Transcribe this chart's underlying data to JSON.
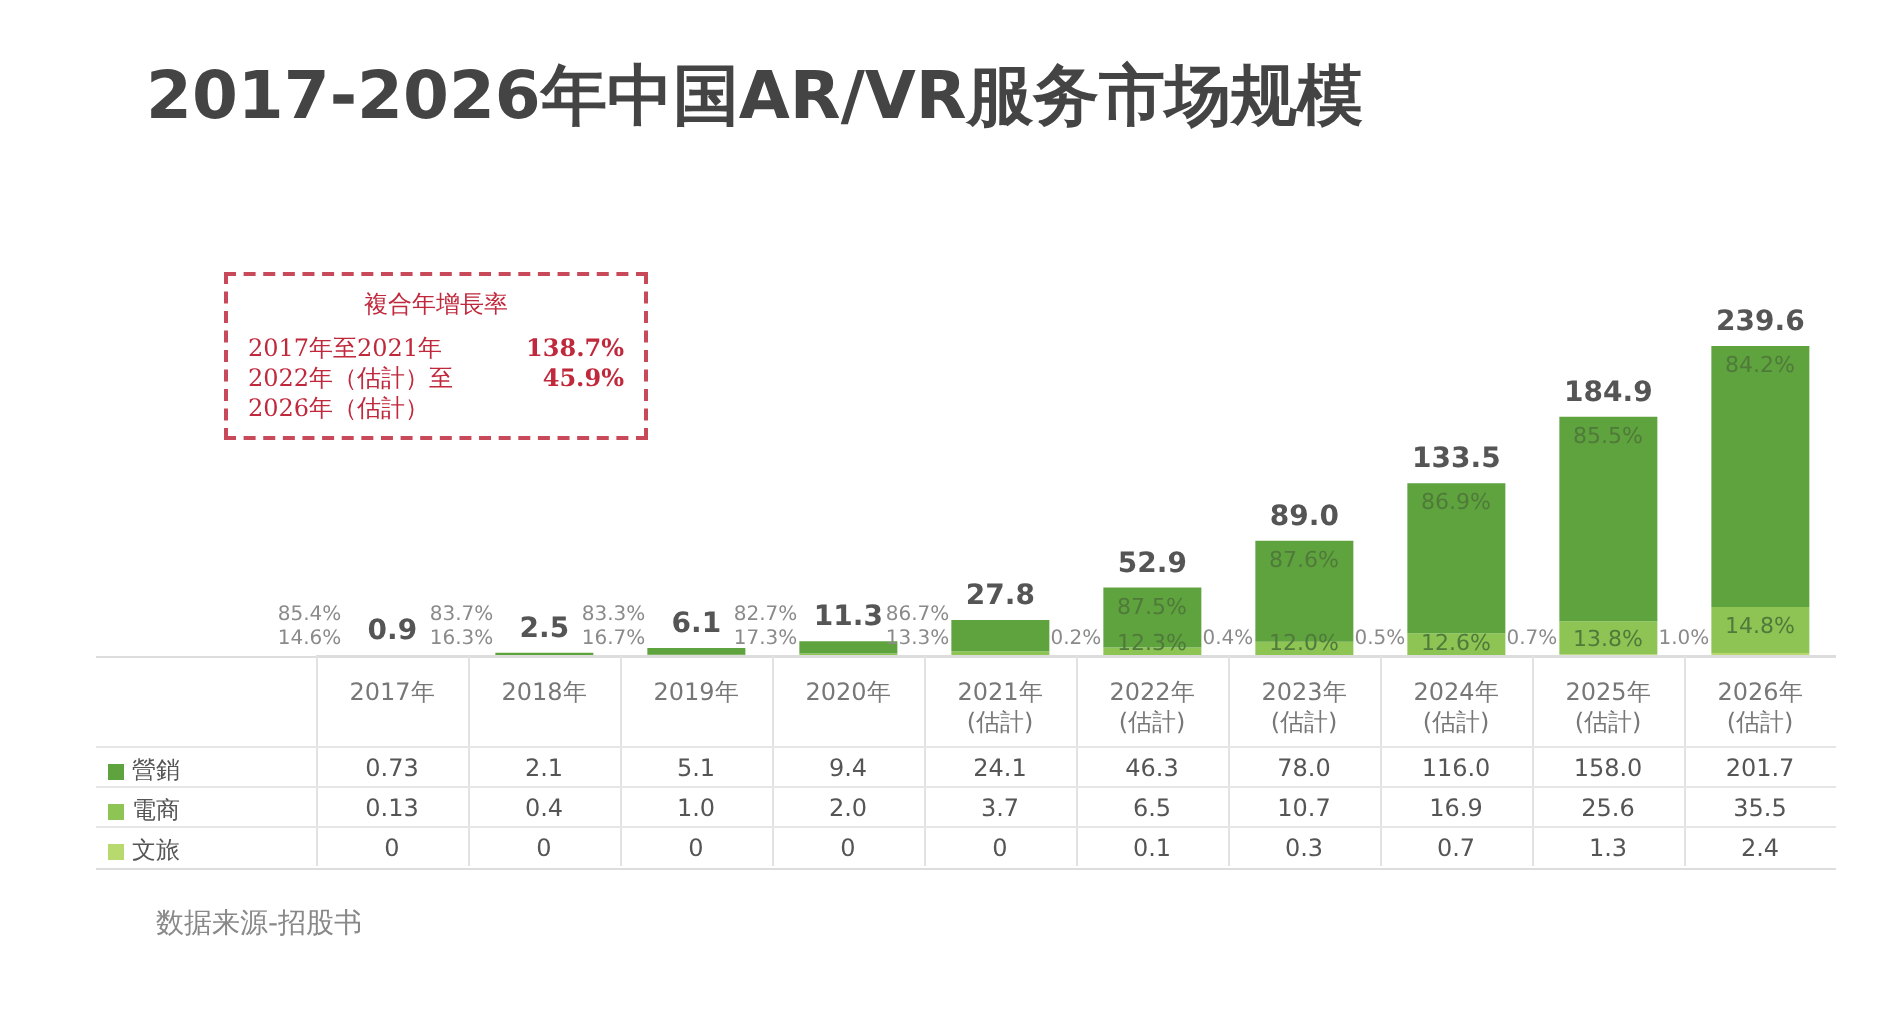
{
  "chart_data": {
    "type": "bar",
    "stacked": true,
    "title": "2017-2026年中国AR/VR服务市场规模",
    "categories": [
      "2017年",
      "2018年",
      "2019年",
      "2020年",
      "2021年(估計)",
      "2022年(估計)",
      "2023年(估計)",
      "2024年(估計)",
      "2025年(估計)",
      "2026年(估計)"
    ],
    "series": [
      {
        "name": "文旅",
        "color": "#b8d96e",
        "values": [
          0,
          0,
          0,
          0,
          0,
          0.1,
          0.3,
          0.7,
          1.3,
          2.4
        ],
        "value_labels": [
          "0",
          "0",
          "0",
          "0",
          "0",
          "0.1",
          "0.3",
          "0.7",
          "1.3",
          "2.4"
        ]
      },
      {
        "name": "電商",
        "color": "#8dc454",
        "values": [
          0.13,
          0.4,
          1.0,
          2.0,
          3.7,
          6.5,
          10.7,
          16.9,
          25.6,
          35.5
        ],
        "value_labels": [
          "0.13",
          "0.4",
          "1.0",
          "2.0",
          "3.7",
          "6.5",
          "10.7",
          "16.9",
          "25.6",
          "35.5"
        ]
      },
      {
        "name": "營銷",
        "color": "#5fa33e",
        "values": [
          0.73,
          2.1,
          5.1,
          9.4,
          24.1,
          46.3,
          78.0,
          116.0,
          158.0,
          201.7
        ],
        "value_labels": [
          "0.73",
          "2.1",
          "5.1",
          "9.4",
          "24.1",
          "46.3",
          "78.0",
          "116.0",
          "158.0",
          "201.7"
        ]
      }
    ],
    "totals": [
      "0.9",
      "2.5",
      "6.1",
      "11.3",
      "27.8",
      "52.9",
      "89.0",
      "133.5",
      "184.9",
      "239.6"
    ],
    "legend": "bottom left",
    "annotations": [
      "複合年增長率",
      "2017年至2021年",
      "138.7%",
      "2022年（估計）至2026年（估計）",
      "45.9%",
      "数据来源-招股书",
      {
        "text": "85.4%",
        "x": "2017年",
        "y": 0.86
      },
      {
        "text": "14.6%",
        "x": "2017年",
        "y": 0.13
      },
      {
        "text": "83.7%",
        "x": "2018年",
        "y": 2.5
      },
      {
        "text": "16.3%",
        "x": "2018年",
        "y": 0.4
      },
      {
        "text": "83.3%",
        "x": "2019年",
        "y": 6.1
      },
      {
        "text": "16.7%",
        "x": "2019年",
        "y": 1.0
      },
      {
        "text": "82.7%",
        "x": "2020年",
        "y": 11.4
      },
      {
        "text": "17.3%",
        "x": "2020年",
        "y": 2.0
      },
      {
        "text": "86.7%",
        "x": "2021年(估計)",
        "y": 27.8
      },
      {
        "text": "13.3%",
        "x": "2021年(估計)",
        "y": 3.7
      },
      {
        "text": "0.2%",
        "x": "2022年(估計)",
        "y": 0.1
      },
      {
        "text": "12.3%",
        "x": "2022年(估計)",
        "y": 6.6
      },
      {
        "text": "87.5%",
        "x": "2022年(估計)",
        "y": 52.9
      },
      {
        "text": "0.4%",
        "x": "2023年(估計)",
        "y": 0.3
      },
      {
        "text": "12.0%",
        "x": "2023年(估計)",
        "y": 11.0
      },
      {
        "text": "87.6%",
        "x": "2023年(估計)",
        "y": 89.0
      },
      {
        "text": "0.5%",
        "x": "2024年(估計)",
        "y": 0.7
      },
      {
        "text": "12.6%",
        "x": "2024年(估計)",
        "y": 17.6
      },
      {
        "text": "86.9%",
        "x": "2024年(估計)",
        "y": 133.6
      },
      {
        "text": "0.7%",
        "x": "2025年(估計)",
        "y": 1.3
      },
      {
        "text": "13.8%",
        "x": "2025年(估計)",
        "y": 26.9
      },
      {
        "text": "85.5%",
        "x": "2025年(估計)",
        "y": 184.9
      },
      {
        "text": "1.0%",
        "x": "2026年(估計)",
        "y": 2.4
      },
      {
        "text": "14.8%",
        "x": "2026年(估計)",
        "y": 37.9
      },
      {
        "text": "84.2%",
        "x": "2026年(估計)",
        "y": 239.6
      }
    ]
  }
}
